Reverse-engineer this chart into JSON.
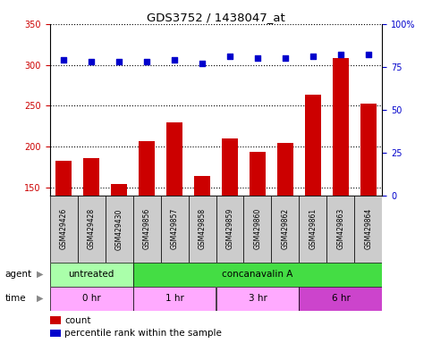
{
  "title": "GDS3752 / 1438047_at",
  "samples": [
    "GSM429426",
    "GSM429428",
    "GSM429430",
    "GSM429856",
    "GSM429857",
    "GSM429858",
    "GSM429859",
    "GSM429860",
    "GSM429862",
    "GSM429861",
    "GSM429863",
    "GSM429864"
  ],
  "counts": [
    183,
    186,
    154,
    207,
    230,
    164,
    210,
    193,
    204,
    263,
    308,
    252
  ],
  "percentile_ranks": [
    79,
    78,
    78,
    78,
    79,
    77,
    81,
    80,
    80,
    81,
    82,
    82
  ],
  "ylim_left": [
    140,
    350
  ],
  "ylim_right": [
    0,
    100
  ],
  "yticks_left": [
    150,
    200,
    250,
    300,
    350
  ],
  "yticks_right": [
    0,
    25,
    50,
    75,
    100
  ],
  "bar_color": "#cc0000",
  "dot_color": "#0000cc",
  "agent_groups": [
    {
      "label": "untreated",
      "start": 0,
      "end": 3,
      "color": "#aaffaa"
    },
    {
      "label": "concanavalin A",
      "start": 3,
      "end": 12,
      "color": "#44dd44"
    }
  ],
  "time_groups": [
    {
      "label": "0 hr",
      "start": 0,
      "end": 3,
      "color": "#ffaaff"
    },
    {
      "label": "1 hr",
      "start": 3,
      "end": 6,
      "color": "#ffaaff"
    },
    {
      "label": "3 hr",
      "start": 6,
      "end": 9,
      "color": "#ffaaff"
    },
    {
      "label": "6 hr",
      "start": 9,
      "end": 12,
      "color": "#cc44cc"
    }
  ],
  "bg_color": "#ffffff",
  "grid_color": "#000000",
  "label_color_left": "#cc0000",
  "label_color_right": "#0000cc",
  "sample_bg_color": "#cccccc",
  "legend_count_color": "#cc0000",
  "legend_dot_color": "#0000cc"
}
